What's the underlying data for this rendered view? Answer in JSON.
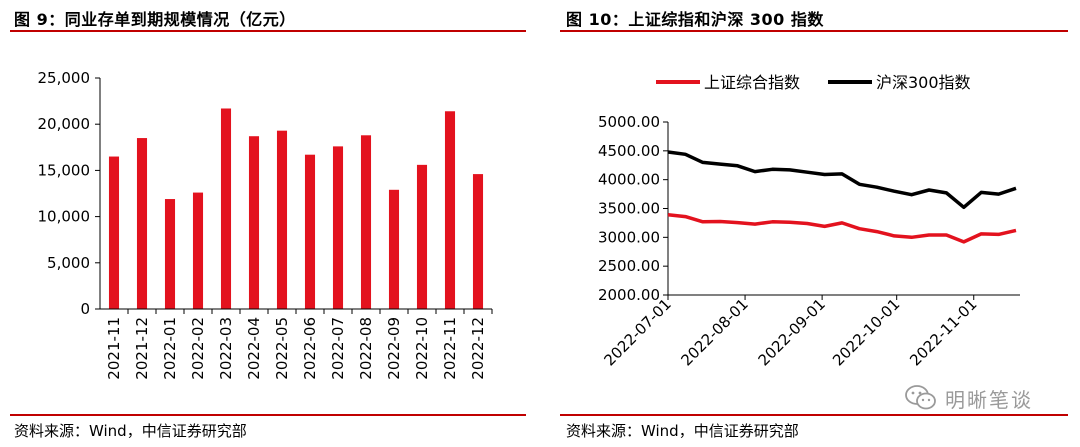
{
  "left_panel": {
    "title": "图 9：同业存单到期规模情况（亿元）",
    "source": "资料来源：Wind，中信证券研究部"
  },
  "right_panel": {
    "title": "图 10：上证综指和沪深 300 指数",
    "source": "资料来源：Wind，中信证券研究部"
  },
  "watermark": {
    "text": "明晰笔谈",
    "icon": "wechat-icon"
  },
  "colors": {
    "accent": "#c00000",
    "bar": "#e3121e",
    "line_red": "#e3121e",
    "line_black": "#000000"
  },
  "chart_data": [
    {
      "type": "bar",
      "categories": [
        "2021-11",
        "2021-12",
        "2022-01",
        "2022-02",
        "2022-03",
        "2022-04",
        "2022-05",
        "2022-06",
        "2022-07",
        "2022-08",
        "2022-09",
        "2022-10",
        "2022-11",
        "2022-12"
      ],
      "values": [
        16500,
        18500,
        11900,
        12600,
        21700,
        18700,
        19300,
        16700,
        17600,
        18800,
        12900,
        15600,
        21400,
        14600
      ],
      "ylim": [
        0,
        25000
      ],
      "yticks": [
        0,
        5000,
        10000,
        15000,
        20000,
        25000
      ],
      "ytick_labels": [
        "0",
        "5,000",
        "10,000",
        "15,000",
        "20,000",
        "25,000"
      ],
      "grid": false,
      "legend": "none"
    },
    {
      "type": "line",
      "x": [
        "2022-07-01",
        "2022-07-08",
        "2022-07-15",
        "2022-07-22",
        "2022-07-29",
        "2022-08-05",
        "2022-08-12",
        "2022-08-19",
        "2022-08-26",
        "2022-09-02",
        "2022-09-09",
        "2022-09-16",
        "2022-09-23",
        "2022-09-30",
        "2022-10-07",
        "2022-10-14",
        "2022-10-21",
        "2022-10-28",
        "2022-11-04",
        "2022-11-11",
        "2022-11-18"
      ],
      "series": [
        {
          "name": "上证综合指数",
          "values": [
            3390,
            3360,
            3270,
            3275,
            3255,
            3230,
            3270,
            3260,
            3240,
            3190,
            3250,
            3150,
            3100,
            3025,
            3000,
            3040,
            3040,
            2920,
            3060,
            3050,
            3120
          ]
        },
        {
          "name": "沪深300指数",
          "values": [
            4480,
            4440,
            4300,
            4270,
            4240,
            4140,
            4180,
            4170,
            4130,
            4090,
            4100,
            3920,
            3870,
            3800,
            3740,
            3820,
            3770,
            3520,
            3780,
            3750,
            3850
          ]
        }
      ],
      "xtick_labels": [
        "2022-07-01",
        "2022-08-01",
        "2022-09-01",
        "2022-10-01",
        "2022-11-01"
      ],
      "ylim": [
        2000,
        5000
      ],
      "yticks": [
        2000,
        2500,
        3000,
        3500,
        4000,
        4500,
        5000
      ],
      "ytick_labels": [
        "2000.00",
        "2500.00",
        "3000.00",
        "3500.00",
        "4000.00",
        "4500.00",
        "5000.00"
      ],
      "grid": false,
      "legend": "top"
    }
  ]
}
